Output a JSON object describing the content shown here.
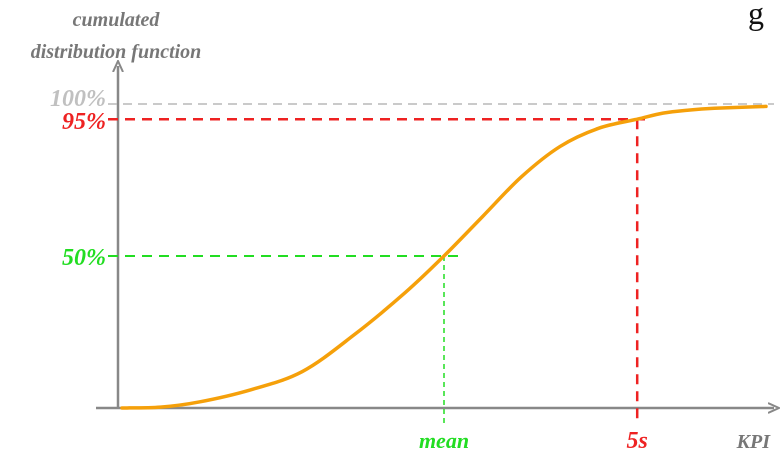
{
  "chart_data": {
    "type": "line",
    "title": "",
    "ylabel": "cumulated distribution function",
    "xlabel": "KPI",
    "ylim": [
      0,
      100
    ],
    "y_ticks": [
      "50%",
      "95%",
      "100%"
    ],
    "x_ticks": [
      "mean",
      "5s"
    ],
    "series": [
      {
        "x": [
          0,
          0.06,
          0.12,
          0.2,
          0.28,
          0.36,
          0.44,
          0.5,
          0.56,
          0.62,
          0.68,
          0.74,
          0.8,
          0.84,
          0.88,
          0.92,
          1.0
        ],
        "values": [
          0,
          0.3,
          2,
          6,
          12,
          24,
          38,
          50,
          63,
          76,
          86,
          92,
          95,
          97,
          98,
          98.6,
          99.2
        ]
      }
    ],
    "annotations": [
      {
        "type": "reference",
        "y": 50,
        "x": 0.5,
        "y_label": "50%",
        "x_label": "mean",
        "color": "#22dd22"
      },
      {
        "type": "reference",
        "y": 95,
        "x": 0.8,
        "y_label": "95%",
        "x_label": "5s",
        "color": "#ee2222"
      },
      {
        "type": "horizontal",
        "y": 100,
        "label": "100%",
        "color": "#b8b8b8"
      }
    ],
    "colors": {
      "curve": "#f5a00a",
      "axis": "#888888"
    },
    "grid": false
  },
  "corner_text": "g"
}
